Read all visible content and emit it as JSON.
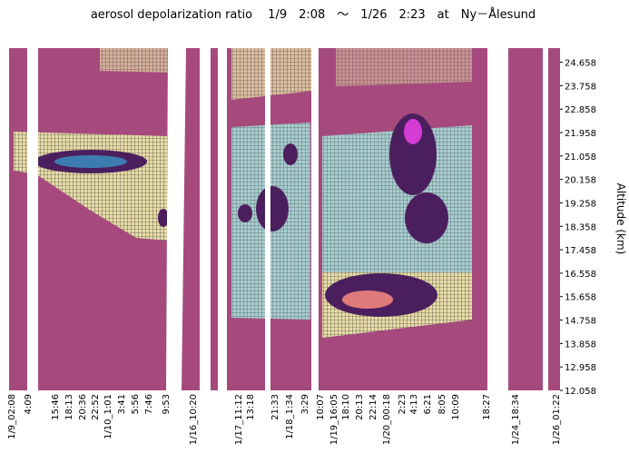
{
  "chart_data": {
    "type": "contour",
    "title": "aerosol depolarization ratio　 1/9　2:08　～　1/26　2:23　at　Ny－Ålesund",
    "y_label": "Altitude (km)",
    "ylim": [
      12.058,
      25.2
    ],
    "yticks": [
      12.058,
      12.958,
      13.858,
      14.758,
      15.658,
      16.558,
      17.458,
      18.358,
      19.258,
      20.158,
      21.058,
      21.958,
      22.858,
      23.758,
      24.658
    ],
    "categories": [
      "1/9_02:08",
      "4:09",
      "15:46",
      "18:13",
      "20:36",
      "22:52",
      "1/10_1:01",
      "3:41",
      "5:56",
      "7:46",
      "9:53",
      "1/16_10:20",
      "1/17_11:12",
      "13:18",
      "21:33",
      "1/18_1:34",
      "3:29",
      "10:07",
      "1/19_16:05",
      "18:10",
      "20:13",
      "22:14",
      "1/20_00:18",
      "2:23",
      "4:13",
      "6:21",
      "8:05",
      "10:09",
      "18:27",
      "1/24_18:34",
      "1/26_01:22"
    ]
  }
}
